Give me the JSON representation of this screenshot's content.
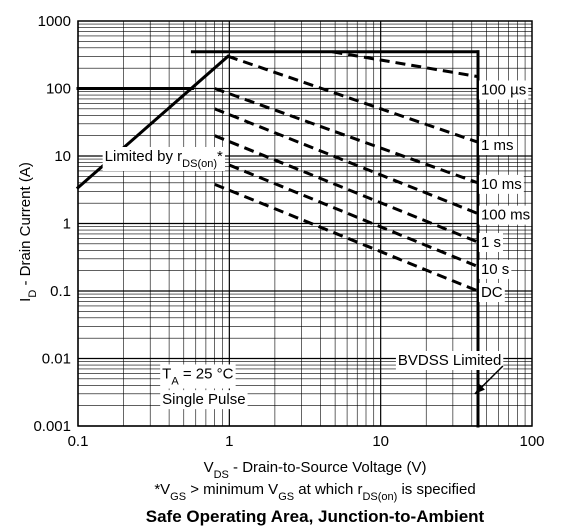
{
  "chart_data": {
    "type": "line",
    "title": "Safe Operating Area, Junction-to-Ambient",
    "xlabel": {
      "main": "V",
      "sub": "DS",
      "rest": "  -  Drain-to-Source Voltage (V)"
    },
    "ylabel": {
      "main": "I",
      "sub": "D",
      "rest": "  -  Drain Current (A)"
    },
    "footnote": {
      "p1": "*V",
      "s1": "GS",
      "p2": " > minimum V",
      "s2": "GS",
      "p3": " at which r",
      "s3": "DS(on)",
      "p4": " is specified"
    },
    "x_scale": "log",
    "y_scale": "log",
    "xlim": [
      0.1,
      100
    ],
    "ylim": [
      0.001,
      1000
    ],
    "x_ticks": [
      {
        "value": 0.1,
        "label": "0.1"
      },
      {
        "value": 1,
        "label": "1"
      },
      {
        "value": 10,
        "label": "10"
      },
      {
        "value": 100,
        "label": "100"
      }
    ],
    "y_ticks": [
      {
        "value": 1000,
        "label": "1000"
      },
      {
        "value": 100,
        "label": "100"
      },
      {
        "value": 10,
        "label": "10"
      },
      {
        "value": 1,
        "label": "1"
      },
      {
        "value": 0.1,
        "label": "0.1"
      },
      {
        "value": 0.01,
        "label": "0.01"
      },
      {
        "value": 0.001,
        "label": "0.001"
      }
    ],
    "grid": true,
    "limits": [
      {
        "name": "rds",
        "points": [
          [
            0.1,
            3.4
          ],
          [
            0.98,
            300
          ]
        ]
      },
      {
        "name": "pulsed-current",
        "points": [
          [
            0.57,
            350
          ],
          [
            44,
            350
          ]
        ]
      },
      {
        "name": "continuous-current",
        "points": [
          [
            0.1,
            100
          ],
          [
            0.57,
            100
          ]
        ]
      },
      {
        "name": "bvdss",
        "points": [
          [
            44,
            0.001
          ],
          [
            44,
            350
          ]
        ]
      }
    ],
    "series": [
      {
        "name": "100 µs",
        "points": [
          [
            4.8,
            350
          ],
          [
            44,
            150
          ]
        ]
      },
      {
        "name": "1 ms",
        "points": [
          [
            0.98,
            300
          ],
          [
            44,
            16
          ]
        ]
      },
      {
        "name": "10 ms",
        "points": [
          [
            0.8,
            100
          ],
          [
            44,
            4
          ]
        ]
      },
      {
        "name": "100 ms",
        "points": [
          [
            0.8,
            50
          ],
          [
            44,
            1.4
          ]
        ]
      },
      {
        "name": "1 s",
        "points": [
          [
            0.8,
            20
          ],
          [
            44,
            0.53
          ]
        ]
      },
      {
        "name": "10 s",
        "points": [
          [
            0.8,
            9
          ],
          [
            44,
            0.23
          ]
        ]
      },
      {
        "name": "DC",
        "points": [
          [
            0.8,
            3.8
          ],
          [
            44,
            0.1
          ]
        ]
      }
    ],
    "curve_labels": [
      {
        "text": "100 µs",
        "x": 46,
        "y": 100
      },
      {
        "text": "1 ms",
        "x": 46,
        "y": 15
      },
      {
        "text": "10 ms",
        "x": 46,
        "y": 4
      },
      {
        "text": "100 ms",
        "x": 46,
        "y": 1.4
      },
      {
        "text": "1 s",
        "x": 46,
        "y": 0.55
      },
      {
        "text": "10 s",
        "x": 46,
        "y": 0.22
      },
      {
        "text": "DC",
        "x": 46,
        "y": 0.1
      }
    ],
    "annotations": {
      "rds": {
        "prefix": "Limited by r",
        "sub": "DS(on)",
        "suffix": "*",
        "x": 0.15,
        "y": 10
      },
      "ta": {
        "prefix": "T",
        "sub": "A",
        "suffix": " = 25 °C",
        "x": 0.36,
        "y": 0.006
      },
      "pulse": {
        "text": "Single Pulse",
        "x": 0.36,
        "y": 0.0025
      },
      "bvdss": {
        "text": "BVDSS Limited",
        "x": 13,
        "y": 0.0095,
        "arrow_to": [
          42,
          0.003
        ]
      }
    }
  }
}
